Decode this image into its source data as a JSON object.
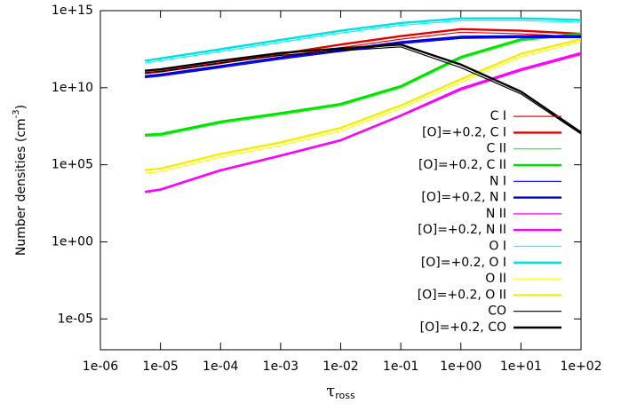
{
  "chart_data": {
    "type": "line",
    "ylabel": [
      "Number densities (cm",
      "-3",
      ")"
    ],
    "xlabel": [
      "τ",
      "ross"
    ],
    "xscale": "log",
    "yscale": "log",
    "xlim": [
      1e-06,
      100
    ],
    "ylim": [
      1e-07,
      1000000000000000.0
    ],
    "xticks": [
      {
        "value": 1e-06,
        "label": "1e-06"
      },
      {
        "value": 1e-05,
        "label": "1e-05"
      },
      {
        "value": 0.0001,
        "label": "1e-04"
      },
      {
        "value": 0.001,
        "label": "1e-03"
      },
      {
        "value": 0.01,
        "label": "1e-02"
      },
      {
        "value": 0.1,
        "label": "1e-01"
      },
      {
        "value": 1,
        "label": "1e+00"
      },
      {
        "value": 10,
        "label": "1e+01"
      },
      {
        "value": 100,
        "label": "1e+02"
      }
    ],
    "yticks": [
      {
        "value": 1e-05,
        "label": "1e-05"
      },
      {
        "value": 1,
        "label": "1e+00"
      },
      {
        "value": 100000.0,
        "label": "1e+05"
      },
      {
        "value": 10000000000.0,
        "label": "1e+10"
      },
      {
        "value": 1000000000000000.0,
        "label": "1e+15"
      }
    ],
    "legend": "lower right",
    "x": [
      5.5e-06,
      1e-05,
      0.0001,
      0.001,
      0.01,
      0.1,
      1,
      10,
      100
    ],
    "series": [
      {
        "name": "C I",
        "color": "#ff0000",
        "width": 1,
        "values": [
          56200000000.0,
          70800000000.0,
          251000000000.0,
          1000000000000.0,
          3980000000000.0,
          14100000000000.0,
          39800000000000.0,
          31600000000000.0,
          20000000000000.0
        ]
      },
      {
        "name": "[O]=+0.2, C I",
        "color": "#e00000",
        "width": 2,
        "values": [
          89100000000.0,
          112000000000.0,
          398000000000.0,
          1580000000000.0,
          6310000000000.0,
          22400000000000.0,
          63100000000000.0,
          50100000000000.0,
          31600000000000.0
        ]
      },
      {
        "name": "C II",
        "color": "#00ff00",
        "width": 1,
        "values": [
          7080000.0,
          7940000.0,
          50100000.0,
          178000000.0,
          708000000.0,
          10000000000.0,
          794000000000.0,
          11200000000000.0,
          28200000000000.0
        ]
      },
      {
        "name": "[O]=+0.2, C II",
        "color": "#00e000",
        "width": 2,
        "values": [
          8910000.0,
          10000000.0,
          63100000.0,
          224000000.0,
          891000000.0,
          12600000000.0,
          1000000000000.0,
          14100000000000.0,
          31600000000000.0
        ]
      },
      {
        "name": "N I",
        "color": "#0000ff",
        "width": 1,
        "values": [
          44700000000.0,
          56200000000.0,
          200000000000.0,
          708000000000.0,
          2240000000000.0,
          7080000000000.0,
          15800000000000.0,
          17800000000000.0,
          17800000000000.0
        ]
      },
      {
        "name": "[O]=+0.2, N I",
        "color": "#0000d0",
        "width": 2,
        "values": [
          56200000000.0,
          70800000000.0,
          251000000000.0,
          891000000000.0,
          2820000000000.0,
          8910000000000.0,
          20000000000000.0,
          22400000000000.0,
          22400000000000.0
        ]
      },
      {
        "name": "N II",
        "color": "#ff00ff",
        "width": 1,
        "values": [
          1580.0,
          2240.0,
          39800.0,
          355000.0,
          3550000.0,
          141000000.0,
          7080000000.0,
          126000000000.0,
          1410000000000.0
        ]
      },
      {
        "name": "[O]=+0.2, N II",
        "color": "#ff00ff",
        "width": 2,
        "values": [
          1780.0,
          2510.0,
          44700.0,
          398000.0,
          3980000.0,
          158000000.0,
          8910000000.0,
          158000000000.0,
          1780000000000.0
        ]
      },
      {
        "name": "O I",
        "color": "#00ffff",
        "width": 1,
        "values": [
          398000000000.0,
          562000000000.0,
          2240000000000.0,
          8910000000000.0,
          35500000000000.0,
          112000000000000.0,
          224000000000000.0,
          224000000000000.0,
          178000000000000.0
        ]
      },
      {
        "name": "[O]=+0.2, O I",
        "color": "#00e0e0",
        "width": 2,
        "values": [
          562000000000.0,
          794000000000.0,
          3160000000000.0,
          12600000000000.0,
          50100000000000.0,
          158000000000000.0,
          316000000000000.0,
          316000000000000.0,
          251000000000000.0
        ]
      },
      {
        "name": "O II",
        "color": "#ffff00",
        "width": 1,
        "values": [
          28200.0,
          35500.0,
          316000.0,
          1780000.0,
          15800000.0,
          447000000.0,
          22400000000.0,
          1000000000000.0,
          10000000000000.0
        ]
      },
      {
        "name": "[O]=+0.2, O II",
        "color": "#f0f000",
        "width": 2,
        "values": [
          44700.0,
          56200.0,
          501000.0,
          2820000.0,
          25100000.0,
          708000000.0,
          35500000000.0,
          1580000000000.0,
          14100000000000.0
        ]
      },
      {
        "name": "CO",
        "color": "#000000",
        "width": 1,
        "values": [
          89100000000.0,
          112000000000.0,
          398000000000.0,
          1260000000000.0,
          2510000000000.0,
          4470000000000.0,
          200000000000.0,
          3980000000.0,
          10000000.0
        ]
      },
      {
        "name": "[O]=+0.2, CO",
        "color": "#000000",
        "width": 2,
        "values": [
          126000000000.0,
          158000000000.0,
          562000000000.0,
          1780000000000.0,
          3550000000000.0,
          6310000000000.0,
          316000000000.0,
          5620000000.0,
          12600000.0
        ]
      }
    ]
  }
}
